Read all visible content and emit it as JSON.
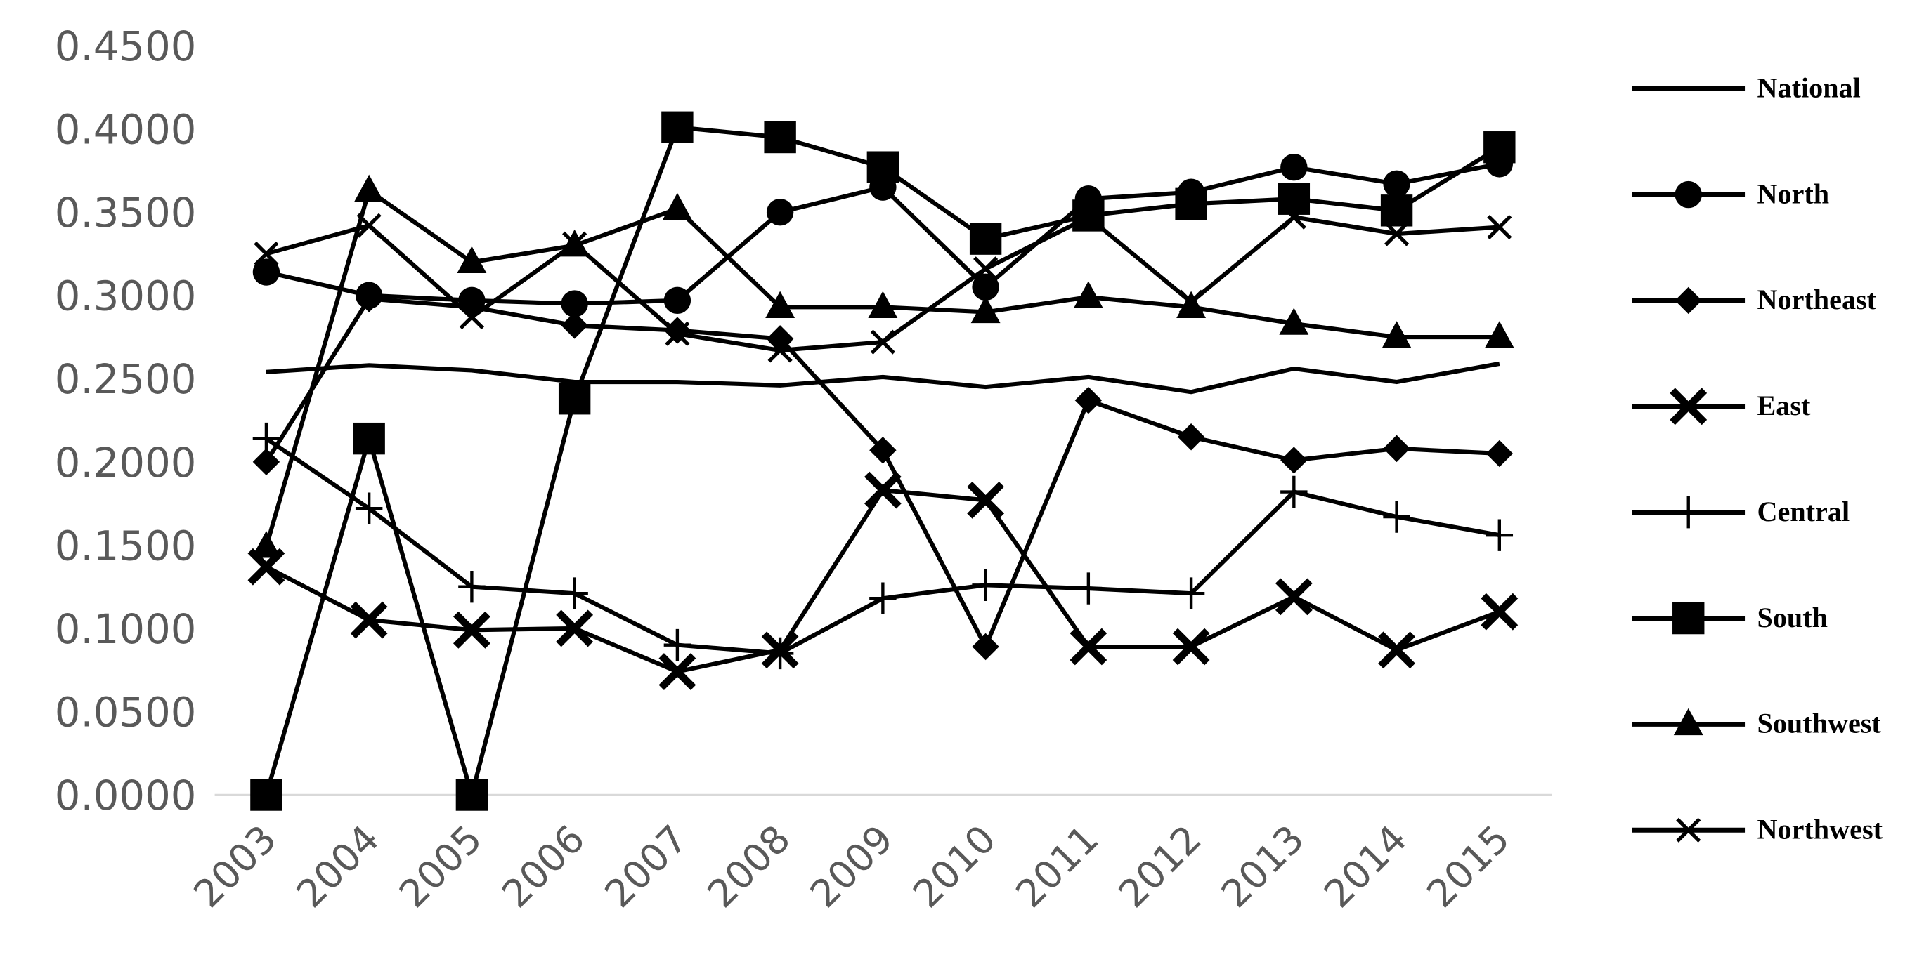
{
  "chart_data": {
    "type": "line",
    "categories": [
      "2003",
      "2004",
      "2005",
      "2006",
      "2007",
      "2008",
      "2009",
      "2010",
      "2011",
      "2012",
      "2013",
      "2014",
      "2015"
    ],
    "ylim": [
      0,
      0.45
    ],
    "yticks": [
      {
        "value": 0,
        "label": "0.0000"
      },
      {
        "value": 0.05,
        "label": "0.0500"
      },
      {
        "value": 0.1,
        "label": "0.1000"
      },
      {
        "value": 0.15,
        "label": "0.1500"
      },
      {
        "value": 0.2,
        "label": "0.2000"
      },
      {
        "value": 0.25,
        "label": "0.2500"
      },
      {
        "value": 0.3,
        "label": "0.3000"
      },
      {
        "value": 0.35,
        "label": "0.3500"
      },
      {
        "value": 0.4,
        "label": "0.4000"
      },
      {
        "value": 0.45,
        "label": "0.4500"
      }
    ],
    "grid": false,
    "legend": "right",
    "series": [
      {
        "name": "National",
        "color": "#000000",
        "marker": "none",
        "values": [
          0.254,
          0.258,
          0.255,
          0.248,
          0.248,
          0.246,
          0.251,
          0.245,
          0.251,
          0.242,
          0.256,
          0.248,
          0.259
        ]
      },
      {
        "name": "North",
        "color": "#000000",
        "marker": "circle",
        "values": [
          0.314,
          0.3,
          0.297,
          0.295,
          0.297,
          0.35,
          0.365,
          0.305,
          0.358,
          0.362,
          0.377,
          0.367,
          0.379
        ]
      },
      {
        "name": "Northeast",
        "color": "#000000",
        "marker": "diamond",
        "values": [
          0.2,
          0.298,
          0.293,
          0.282,
          0.279,
          0.274,
          0.207,
          0.089,
          0.237,
          0.215,
          0.201,
          0.208,
          0.205
        ]
      },
      {
        "name": "East",
        "color": "#000000",
        "marker": "boldx",
        "values": [
          0.137,
          0.105,
          0.099,
          0.1,
          0.074,
          0.087,
          0.183,
          0.177,
          0.089,
          0.089,
          0.119,
          0.087,
          0.11
        ]
      },
      {
        "name": "Central",
        "color": "#000000",
        "marker": "plus",
        "values": [
          0.214,
          0.172,
          0.125,
          0.121,
          0.09,
          0.085,
          0.118,
          0.126,
          0.124,
          0.121,
          0.182,
          0.167,
          0.156
        ]
      },
      {
        "name": "South",
        "color": "#000000",
        "marker": "square",
        "values": [
          0,
          0.214,
          0,
          0.238,
          0.401,
          0.395,
          0.377,
          0.334,
          0.348,
          0.355,
          0.358,
          0.351,
          0.389
        ]
      },
      {
        "name": "Southwest",
        "color": "#000000",
        "marker": "triangle",
        "values": [
          0.149,
          0.363,
          0.32,
          0.33,
          0.352,
          0.293,
          0.293,
          0.29,
          0.299,
          0.293,
          0.283,
          0.275,
          0.275
        ]
      },
      {
        "name": "Northwest",
        "color": "#000000",
        "marker": "x",
        "values": [
          0.325,
          0.342,
          0.287,
          0.331,
          0.277,
          0.267,
          0.272,
          0.316,
          0.347,
          0.296,
          0.347,
          0.337,
          0.341
        ]
      }
    ]
  }
}
